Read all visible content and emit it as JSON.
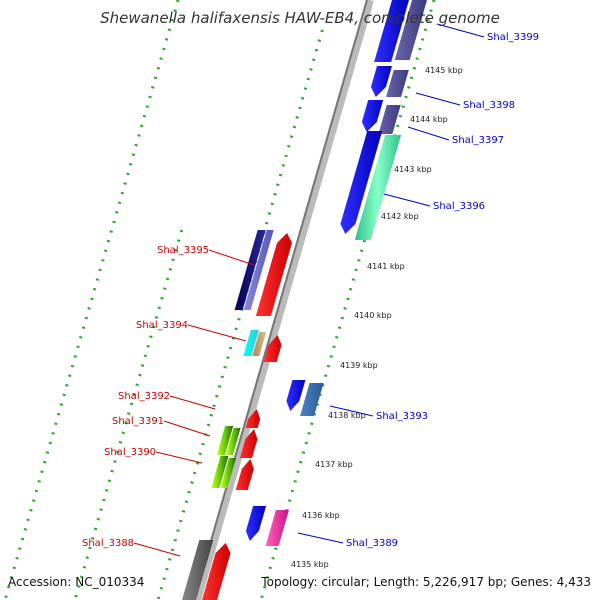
{
  "header": {
    "title": "Shewanella halifaxensis HAW-EB4, complete genome"
  },
  "footer": {
    "accession": "Accession: NC_010334",
    "topology": "Topology: circular; Length: 5,226,917 bp; Genes: 4,433"
  },
  "ticks": [
    "4145 kbp",
    "4144 kbp",
    "4143 kbp",
    "4142 kbp",
    "4141 kbp",
    "4140 kbp",
    "4139 kbp",
    "4138 kbp",
    "4137 kbp",
    "4136 kbp",
    "4135 kbp"
  ],
  "genes_right": [
    "Shal_3399",
    "Shal_3398",
    "Shal_3397",
    "Shal_3396",
    "Shal_3393",
    "Shal_3389"
  ],
  "genes_left": [
    "Shal_3395",
    "Shal_3394",
    "Shal_3392",
    "Shal_3391",
    "Shal_3390",
    "Shal_3388"
  ],
  "colors": {
    "right_label": "#0000cc",
    "left_label": "#cc0000",
    "dots": "#22aa22"
  }
}
